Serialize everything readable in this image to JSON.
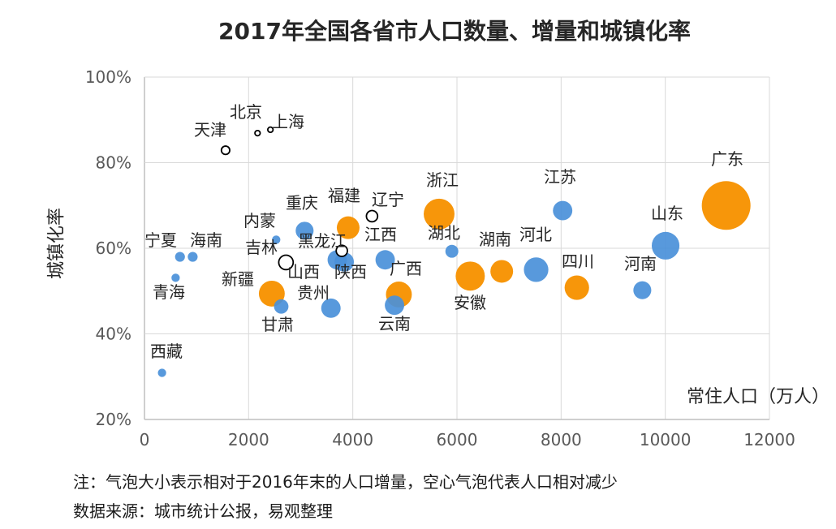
{
  "chart_data": {
    "type": "bubble",
    "title": "2017年全国各省市人口数量、增量和城镇化率",
    "xlabel": "常住人口（万人）",
    "ylabel": "城镇化率",
    "xlim": [
      0,
      12000
    ],
    "ylim": [
      20,
      100
    ],
    "x_ticks": [
      "0",
      "2000",
      "4000",
      "6000",
      "8000",
      "10000",
      "12000"
    ],
    "y_ticks": [
      "20%",
      "40%",
      "60%",
      "80%",
      "100%"
    ],
    "grid": true,
    "colors": {
      "blue": "#4A90D9",
      "orange": "#F7960A",
      "hollow": "#000000"
    },
    "size_note": "bubble area ~ population increase vs end of 2016 (estimated, 万人)",
    "points": [
      {
        "name": "北京",
        "x": 2171,
        "y": 86.9,
        "size": 2,
        "style": "hollow"
      },
      {
        "name": "上海",
        "x": 2418,
        "y": 87.7,
        "size": 2,
        "style": "hollow"
      },
      {
        "name": "天津",
        "x": 1557,
        "y": 82.9,
        "size": 5,
        "style": "hollow"
      },
      {
        "name": "辽宁",
        "x": 4369,
        "y": 67.5,
        "size": 9,
        "style": "hollow"
      },
      {
        "name": "黑龙江",
        "x": 3789,
        "y": 59.4,
        "size": 9,
        "style": "hollow"
      },
      {
        "name": "吉林",
        "x": 2717,
        "y": 56.7,
        "size": 15,
        "style": "hollow"
      },
      {
        "name": "内蒙",
        "x": 2529,
        "y": 62.0,
        "size": 5,
        "style": "blue"
      },
      {
        "name": "重庆",
        "x": 3075,
        "y": 64.1,
        "size": 23,
        "style": "blue"
      },
      {
        "name": "福建",
        "x": 3911,
        "y": 64.8,
        "size": 37,
        "style": "orange"
      },
      {
        "name": "宁夏",
        "x": 682,
        "y": 58.0,
        "size": 7,
        "style": "blue"
      },
      {
        "name": "海南",
        "x": 926,
        "y": 58.0,
        "size": 7,
        "style": "blue"
      },
      {
        "name": "青海",
        "x": 598,
        "y": 53.1,
        "size": 5,
        "style": "blue"
      },
      {
        "name": "新疆",
        "x": 2445,
        "y": 49.4,
        "size": 48,
        "style": "orange"
      },
      {
        "name": "甘肃",
        "x": 2626,
        "y": 46.4,
        "size": 15,
        "style": "blue"
      },
      {
        "name": "山西",
        "x": 3702,
        "y": 57.3,
        "size": 27,
        "style": "blue"
      },
      {
        "name": "陕西",
        "x": 3835,
        "y": 56.8,
        "size": 27,
        "style": "blue"
      },
      {
        "name": "贵州",
        "x": 3580,
        "y": 46.0,
        "size": 27,
        "style": "blue"
      },
      {
        "name": "江西",
        "x": 4622,
        "y": 57.3,
        "size": 27,
        "style": "blue"
      },
      {
        "name": "广西",
        "x": 4885,
        "y": 49.2,
        "size": 48,
        "style": "orange"
      },
      {
        "name": "云南",
        "x": 4801,
        "y": 46.7,
        "size": 27,
        "style": "blue"
      },
      {
        "name": "浙江",
        "x": 5657,
        "y": 68.0,
        "size": 68,
        "style": "orange"
      },
      {
        "name": "湖北",
        "x": 5902,
        "y": 59.3,
        "size": 12,
        "style": "blue"
      },
      {
        "name": "安徽",
        "x": 6255,
        "y": 53.5,
        "size": 61,
        "style": "orange"
      },
      {
        "name": "湖南",
        "x": 6860,
        "y": 54.6,
        "size": 37,
        "style": "orange"
      },
      {
        "name": "河北",
        "x": 7520,
        "y": 55.0,
        "size": 43,
        "style": "blue"
      },
      {
        "name": "江苏",
        "x": 8029,
        "y": 68.8,
        "size": 27,
        "style": "blue"
      },
      {
        "name": "四川",
        "x": 8302,
        "y": 50.8,
        "size": 43,
        "style": "orange"
      },
      {
        "name": "河南",
        "x": 9559,
        "y": 50.2,
        "size": 23,
        "style": "blue"
      },
      {
        "name": "山东",
        "x": 10006,
        "y": 60.6,
        "size": 55,
        "style": "blue"
      },
      {
        "name": "广东",
        "x": 11169,
        "y": 70.0,
        "size": 170,
        "style": "orange"
      },
      {
        "name": "西藏",
        "x": 337,
        "y": 30.9,
        "size": 5,
        "style": "blue"
      }
    ]
  },
  "notes": {
    "note": "注：气泡大小表示相对于2016年末的人口增量，空心气泡代表人口相对减少",
    "source": "数据来源：城市统计公报，易观整理"
  }
}
